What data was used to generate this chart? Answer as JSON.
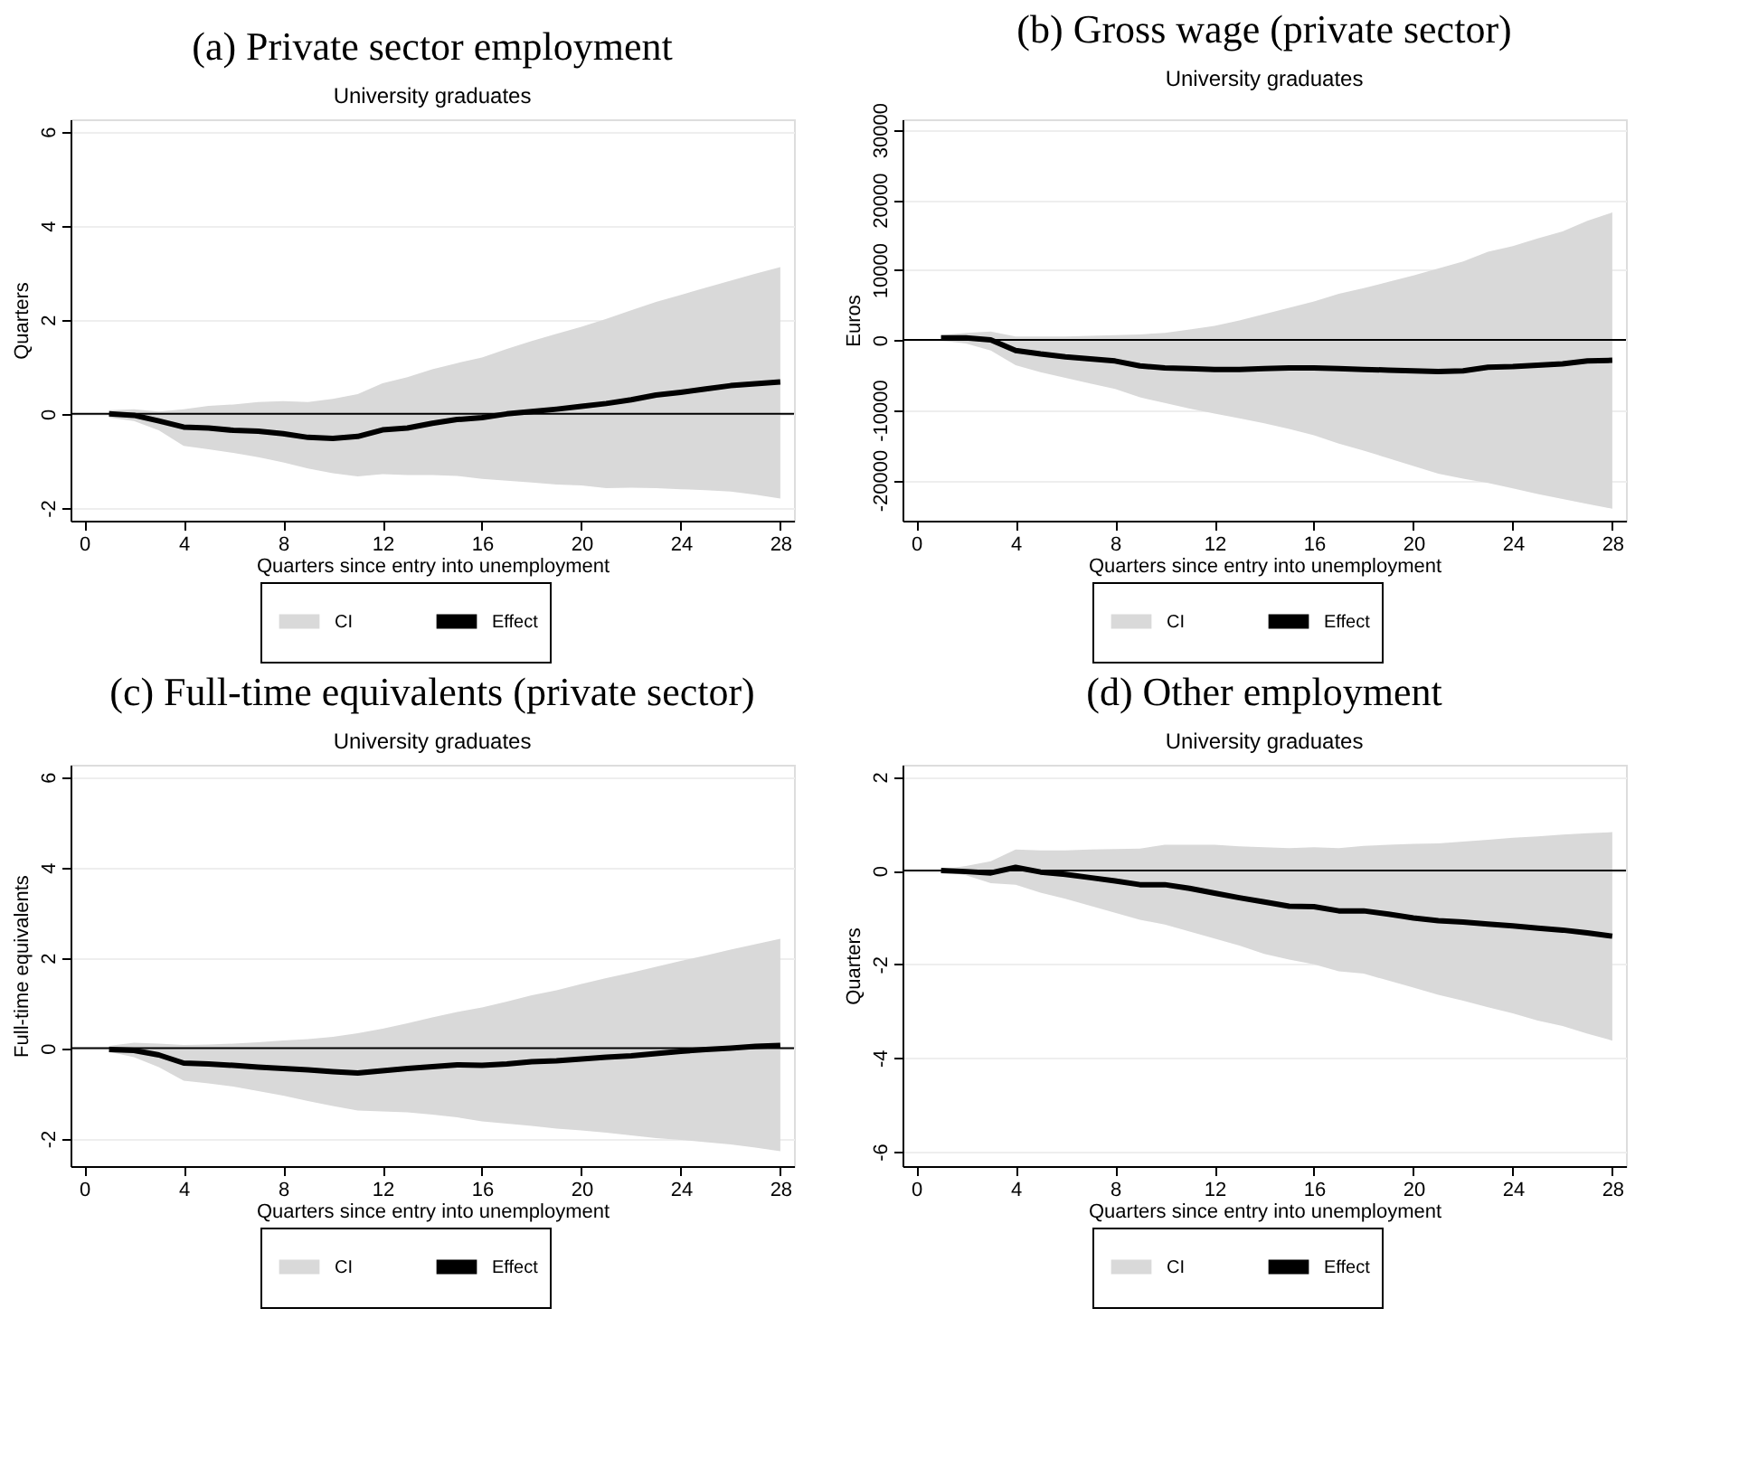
{
  "chart_data": [
    {
      "type": "line",
      "title": "(a) Private sector employment",
      "subtitle": "University graduates",
      "xlabel": "Quarters since entry into unemployment",
      "ylabel": "Quarters",
      "annotations": [
        "CI"
      ],
      "x": [
        1,
        2,
        3,
        4,
        5,
        6,
        7,
        8,
        9,
        10,
        11,
        12,
        13,
        14,
        15,
        16,
        17,
        18,
        19,
        20,
        21,
        22,
        23,
        24,
        25,
        26,
        27,
        28
      ],
      "xlim": [
        -0.55,
        28.55
      ],
      "xticks": [
        0,
        4,
        8,
        12,
        16,
        20,
        24,
        28
      ],
      "ylim": [
        -2.27,
        6.26
      ],
      "yticks": [
        -2,
        0,
        2,
        4,
        6
      ],
      "grid": "y",
      "legend": "bottom",
      "ref_lines": [
        {
          "axis": "y",
          "value": 0,
          "color": "#000000"
        }
      ],
      "series": [
        {
          "name": "Effect",
          "color": "#000000",
          "values": [
            0,
            -0.03,
            -0.15,
            -0.28,
            -0.3,
            -0.35,
            -0.37,
            -0.42,
            -0.5,
            -0.52,
            -0.48,
            -0.34,
            -0.3,
            -0.2,
            -0.12,
            -0.08,
            0,
            0.05,
            0.1,
            0.16,
            0.22,
            0.3,
            0.4,
            0.46,
            0.53,
            0.6,
            0.64,
            0.68
          ],
          "lower": [
            -0.08,
            -0.15,
            -0.35,
            -0.68,
            -0.75,
            -0.83,
            -0.92,
            -1.03,
            -1.16,
            -1.26,
            -1.33,
            -1.28,
            -1.3,
            -1.3,
            -1.32,
            -1.38,
            -1.42,
            -1.46,
            -1.5,
            -1.52,
            -1.58,
            -1.57,
            -1.58,
            -1.6,
            -1.62,
            -1.65,
            -1.72,
            -1.8
          ],
          "upper": [
            0.08,
            0.1,
            0.05,
            0.1,
            0.17,
            0.2,
            0.25,
            0.27,
            0.25,
            0.32,
            0.42,
            0.65,
            0.78,
            0.95,
            1.08,
            1.2,
            1.38,
            1.55,
            1.7,
            1.85,
            2.02,
            2.2,
            2.38,
            2.53,
            2.68,
            2.83,
            2.98,
            3.12
          ]
        }
      ]
    },
    {
      "type": "line",
      "title": "(b) Gross wage (private sector)",
      "subtitle": "University graduates",
      "xlabel": "Quarters since entry into unemployment",
      "ylabel": "Euros",
      "annotations": [
        "CI"
      ],
      "x": [
        1,
        2,
        3,
        4,
        5,
        6,
        7,
        8,
        9,
        10,
        11,
        12,
        13,
        14,
        15,
        16,
        17,
        18,
        19,
        20,
        21,
        22,
        23,
        24,
        25,
        26,
        27,
        28
      ],
      "xlim": [
        -0.55,
        28.55
      ],
      "xticks": [
        0,
        4,
        8,
        12,
        16,
        20,
        24,
        28
      ],
      "ylim": [
        -25800,
        31500
      ],
      "yticks": [
        -20000,
        -10000,
        0,
        10000,
        20000,
        30000
      ],
      "grid": "y",
      "legend": "bottom",
      "ref_lines": [
        {
          "axis": "y",
          "value": 0,
          "color": "#000000"
        }
      ],
      "series": [
        {
          "name": "Effect",
          "color": "#000000",
          "values": [
            300,
            300,
            0,
            -1500,
            -2000,
            -2400,
            -2700,
            -3000,
            -3700,
            -4000,
            -4100,
            -4200,
            -4200,
            -4100,
            -4000,
            -4000,
            -4100,
            -4200,
            -4300,
            -4400,
            -4500,
            -4400,
            -3900,
            -3800,
            -3600,
            -3400,
            -3000,
            -2900
          ],
          "lower": [
            -100,
            -500,
            -1500,
            -3600,
            -4600,
            -5400,
            -6200,
            -7000,
            -8200,
            -9000,
            -9800,
            -10500,
            -11200,
            -11900,
            -12700,
            -13600,
            -14800,
            -15800,
            -16900,
            -18000,
            -19100,
            -19800,
            -20400,
            -21200,
            -22000,
            -22700,
            -23400,
            -24100
          ],
          "upper": [
            700,
            1000,
            1200,
            500,
            500,
            500,
            600,
            700,
            800,
            1000,
            1500,
            2000,
            2800,
            3700,
            4600,
            5500,
            6600,
            7400,
            8300,
            9200,
            10200,
            11200,
            12600,
            13400,
            14500,
            15500,
            17000,
            18200
          ]
        }
      ]
    },
    {
      "type": "line",
      "title": "(c) Full-time equivalents (private sector)",
      "subtitle": "University graduates",
      "xlabel": "Quarters since entry into unemployment",
      "ylabel": "Full-time equivalents",
      "annotations": [
        "CI"
      ],
      "x": [
        1,
        2,
        3,
        4,
        5,
        6,
        7,
        8,
        9,
        10,
        11,
        12,
        13,
        14,
        15,
        16,
        17,
        18,
        19,
        20,
        21,
        22,
        23,
        24,
        25,
        26,
        27,
        28
      ],
      "xlim": [
        -0.55,
        28.55
      ],
      "xticks": [
        0,
        4,
        8,
        12,
        16,
        20,
        24,
        28
      ],
      "ylim": [
        -2.61,
        6.27
      ],
      "yticks": [
        -2,
        0,
        2,
        4,
        6
      ],
      "grid": "y",
      "legend": "bottom",
      "ref_lines": [
        {
          "axis": "y",
          "value": 0,
          "color": "#000000"
        }
      ],
      "series": [
        {
          "name": "Effect",
          "color": "#000000",
          "values": [
            -0.03,
            -0.05,
            -0.15,
            -0.33,
            -0.35,
            -0.38,
            -0.42,
            -0.45,
            -0.48,
            -0.52,
            -0.55,
            -0.5,
            -0.45,
            -0.41,
            -0.37,
            -0.38,
            -0.35,
            -0.3,
            -0.28,
            -0.24,
            -0.2,
            -0.17,
            -0.12,
            -0.07,
            -0.03,
            0,
            0.04,
            0.06
          ],
          "lower": [
            -0.08,
            -0.2,
            -0.42,
            -0.72,
            -0.78,
            -0.85,
            -0.95,
            -1.05,
            -1.17,
            -1.28,
            -1.38,
            -1.4,
            -1.42,
            -1.47,
            -1.53,
            -1.62,
            -1.67,
            -1.72,
            -1.78,
            -1.82,
            -1.87,
            -1.93,
            -1.99,
            -2.03,
            -2.08,
            -2.13,
            -2.2,
            -2.28
          ],
          "upper": [
            0.05,
            0.12,
            0.1,
            0.07,
            0.08,
            0.1,
            0.13,
            0.17,
            0.2,
            0.25,
            0.33,
            0.43,
            0.55,
            0.68,
            0.8,
            0.9,
            1.03,
            1.17,
            1.28,
            1.42,
            1.55,
            1.67,
            1.8,
            1.93,
            2.05,
            2.18,
            2.3,
            2.42
          ]
        }
      ]
    },
    {
      "type": "line",
      "title": "(d) Other employment",
      "subtitle": "University graduates",
      "xlabel": "Quarters since entry into unemployment",
      "ylabel": "Quarters",
      "annotations": [
        "CI"
      ],
      "x": [
        1,
        2,
        3,
        4,
        5,
        6,
        7,
        8,
        9,
        10,
        11,
        12,
        13,
        14,
        15,
        16,
        17,
        18,
        19,
        20,
        21,
        22,
        23,
        24,
        25,
        26,
        27,
        28
      ],
      "xlim": [
        -0.55,
        28.55
      ],
      "xticks": [
        0,
        4,
        8,
        12,
        16,
        20,
        24,
        28
      ],
      "ylim": [
        -6.31,
        2.26
      ],
      "yticks": [
        -6,
        -4,
        -2,
        0,
        2
      ],
      "grid": "y",
      "legend": "bottom",
      "ref_lines": [
        {
          "axis": "y",
          "value": 0,
          "color": "#000000"
        }
      ],
      "series": [
        {
          "name": "Effect",
          "color": "#000000",
          "values": [
            0,
            -0.02,
            -0.05,
            0.07,
            -0.03,
            -0.08,
            -0.15,
            -0.22,
            -0.3,
            -0.3,
            -0.38,
            -0.48,
            -0.58,
            -0.67,
            -0.76,
            -0.77,
            -0.86,
            -0.86,
            -0.93,
            -1.01,
            -1.07,
            -1.1,
            -1.14,
            -1.18,
            -1.23,
            -1.27,
            -1.33,
            -1.4
          ],
          "lower": [
            -0.02,
            -0.1,
            -0.27,
            -0.3,
            -0.47,
            -0.6,
            -0.75,
            -0.9,
            -1.05,
            -1.15,
            -1.3,
            -1.45,
            -1.6,
            -1.78,
            -1.9,
            -2.0,
            -2.15,
            -2.2,
            -2.35,
            -2.5,
            -2.65,
            -2.78,
            -2.92,
            -3.05,
            -3.2,
            -3.32,
            -3.48,
            -3.63
          ],
          "upper": [
            0.02,
            0.1,
            0.2,
            0.45,
            0.43,
            0.43,
            0.45,
            0.46,
            0.47,
            0.55,
            0.55,
            0.55,
            0.52,
            0.5,
            0.48,
            0.5,
            0.48,
            0.53,
            0.55,
            0.57,
            0.58,
            0.62,
            0.66,
            0.7,
            0.73,
            0.77,
            0.8,
            0.82
          ]
        }
      ]
    }
  ]
}
